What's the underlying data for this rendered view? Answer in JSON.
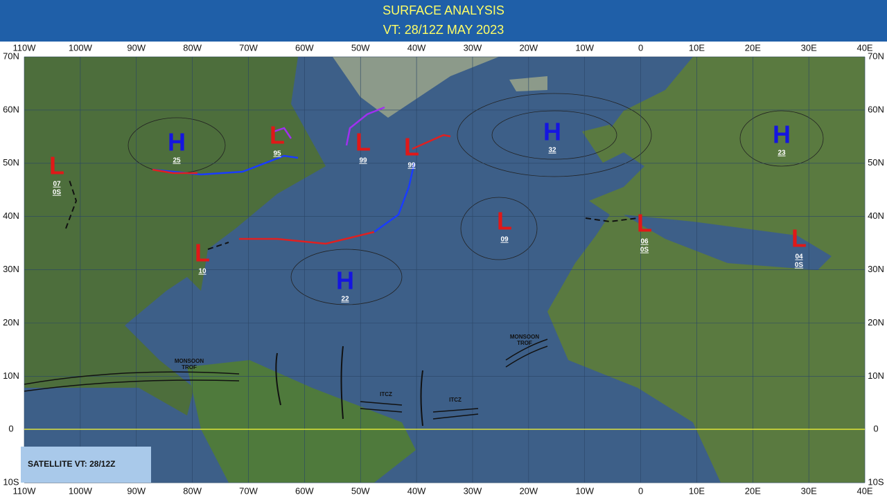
{
  "header": {
    "title": "SURFACE ANALYSIS",
    "subtitle": "VT: 28/12Z MAY 2023"
  },
  "grid": {
    "lon_labels": [
      "110W",
      "100W",
      "90W",
      "80W",
      "70W",
      "60W",
      "50W",
      "40W",
      "30W",
      "20W",
      "10W",
      "0",
      "10E",
      "20E",
      "30E",
      "40E"
    ],
    "lat_labels": [
      "70N",
      "60N",
      "50N",
      "40N",
      "30N",
      "20N",
      "10N",
      "0",
      "10S"
    ]
  },
  "systems": [
    {
      "symbol": "L",
      "values": [
        "07",
        "0S"
      ]
    },
    {
      "symbol": "H",
      "values": [
        "25"
      ]
    },
    {
      "symbol": "L",
      "values": [
        "95"
      ]
    },
    {
      "symbol": "L",
      "values": [
        "99"
      ]
    },
    {
      "symbol": "L",
      "values": [
        "99"
      ]
    },
    {
      "symbol": "H",
      "values": [
        "32"
      ]
    },
    {
      "symbol": "H",
      "values": [
        "23"
      ]
    },
    {
      "symbol": "L",
      "values": [
        "09"
      ]
    },
    {
      "symbol": "L",
      "values": [
        "10"
      ]
    },
    {
      "symbol": "H",
      "values": [
        "22"
      ]
    },
    {
      "symbol": "L",
      "values": [
        "06",
        "0S"
      ]
    },
    {
      "symbol": "L",
      "values": [
        "04",
        "0S"
      ]
    }
  ],
  "features": [
    "MONSOON\nTROF",
    "MONSOON\nTROF",
    "ITCZ",
    "ITCZ"
  ],
  "satellite": "SATELLITE VT: 28/12Z"
}
